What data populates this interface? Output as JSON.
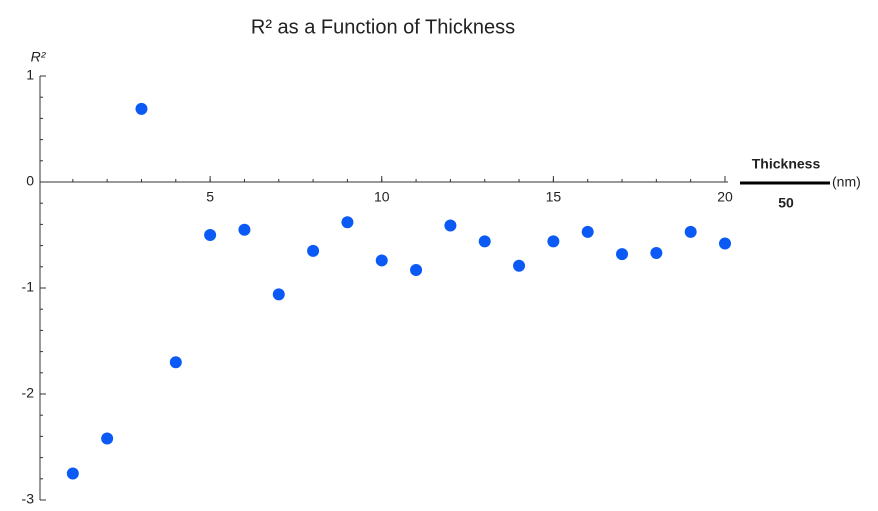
{
  "chart_data": {
    "type": "scatter",
    "title": "R² as a Function of Thickness",
    "ylabel": "R²",
    "xlabel": {
      "numerator": "Thickness",
      "denominator": "50",
      "unit": "(nm)"
    },
    "x": [
      1,
      2,
      3,
      4,
      5,
      6,
      7,
      8,
      9,
      10,
      11,
      12,
      13,
      14,
      15,
      16,
      17,
      18,
      19,
      20
    ],
    "series": [
      {
        "color": "#0b5af5",
        "values": [
          -2.75,
          -2.42,
          0.69,
          -1.7,
          -0.5,
          -0.45,
          -1.06,
          -0.65,
          -0.38,
          -0.74,
          -0.83,
          -0.41,
          -0.56,
          -0.79,
          -0.56,
          -0.47,
          -0.68,
          -0.67,
          -0.47,
          -0.58
        ]
      }
    ],
    "xlim": [
      0,
      20
    ],
    "ylim": [
      -3,
      1
    ],
    "xticks": [
      5,
      10,
      15,
      20
    ],
    "yticks": [
      -3,
      -2,
      -1,
      0,
      1
    ],
    "grid": false
  }
}
